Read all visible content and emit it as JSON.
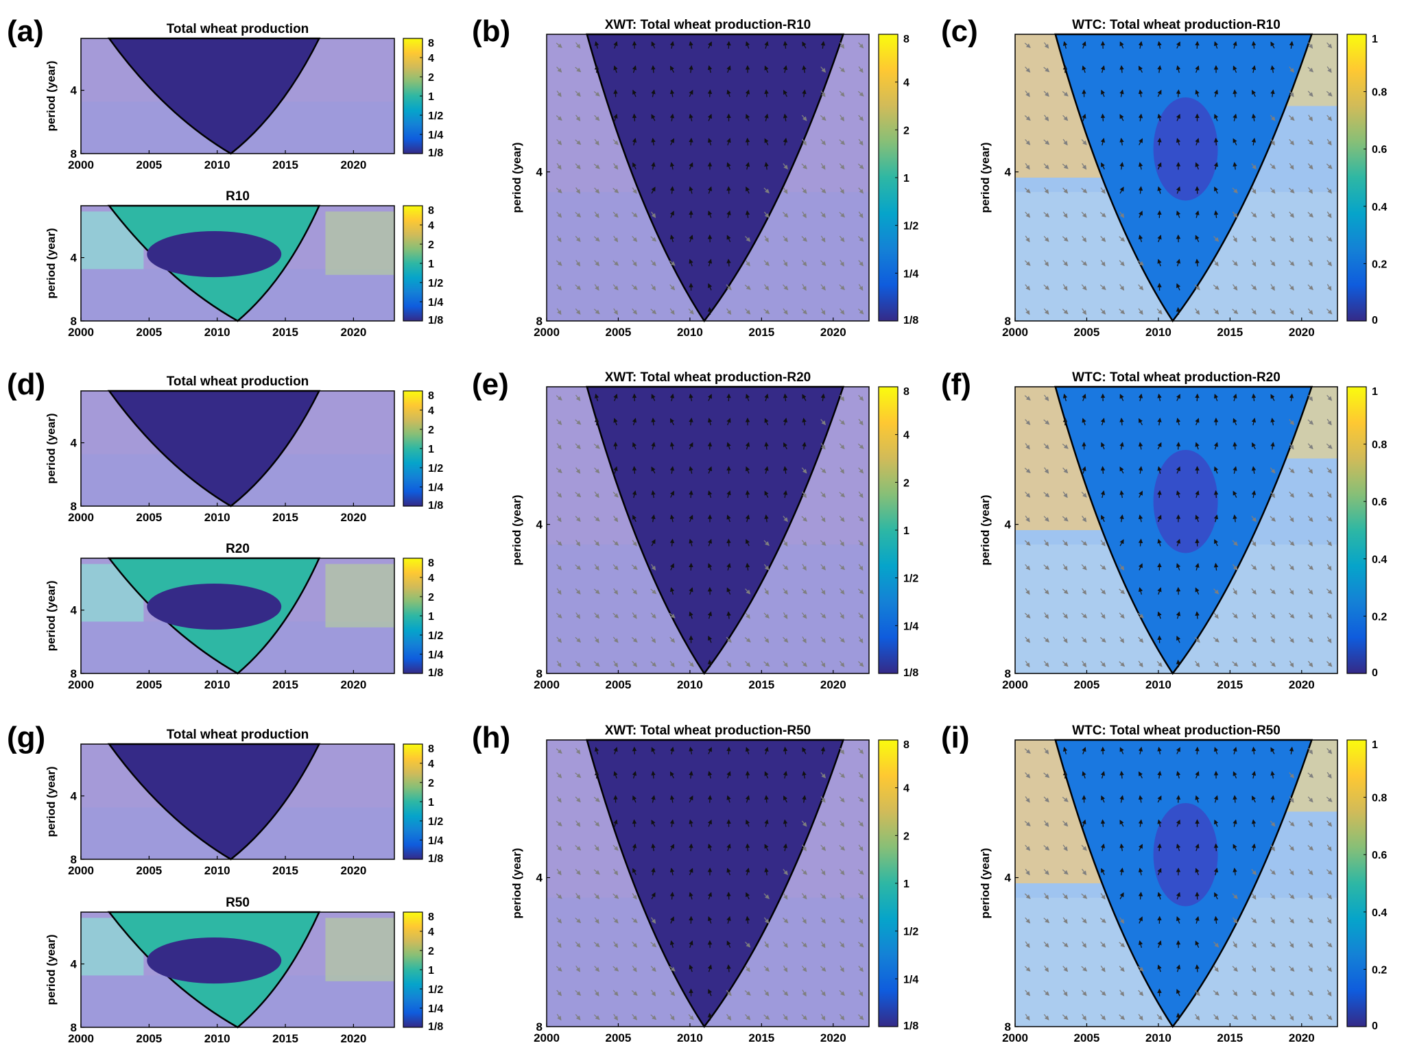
{
  "figure": {
    "colors": {
      "parula": [
        "#352a87",
        "#0f5cdd",
        "#1481d6",
        "#06a4ca",
        "#2eb7a4",
        "#87bf77",
        "#d1bb59",
        "#fec832",
        "#f9fb0e"
      ],
      "masked": "#a59ad8",
      "masked_light": "#b8c6ef",
      "arrow_dark": "#111111",
      "arrow_light": "#7f7f7f",
      "cone": "#000000"
    },
    "panels": [
      {
        "letter": "(a)",
        "kind": "cwt_pair"
      },
      {
        "letter": "(b)",
        "kind": "xwt"
      },
      {
        "letter": "(c)",
        "kind": "wtc"
      },
      {
        "letter": "(d)",
        "kind": "cwt_pair"
      },
      {
        "letter": "(e)",
        "kind": "xwt"
      },
      {
        "letter": "(f)",
        "kind": "wtc"
      },
      {
        "letter": "(g)",
        "kind": "cwt_pair"
      },
      {
        "letter": "(h)",
        "kind": "xwt"
      },
      {
        "letter": "(i)",
        "kind": "wtc"
      }
    ]
  },
  "chart_data": [
    {
      "panel": "(a)",
      "type": "heatmap",
      "title": "Total wheat production",
      "xlabel": "",
      "ylabel": "period (year)",
      "x_ticks": [
        "2000",
        "2005",
        "2010",
        "2015",
        "2020"
      ],
      "y_ticks": [
        "4",
        "8"
      ],
      "xlim": [
        2000,
        2023
      ],
      "colorbar_ticks": [
        "8",
        "4",
        "2",
        "1",
        "1/2",
        "1/4",
        "1/8"
      ],
      "coi_vertex": [
        2011,
        8
      ]
    },
    {
      "panel": "(a)",
      "type": "heatmap",
      "title": "R10",
      "xlabel": "",
      "ylabel": "period (year)",
      "x_ticks": [
        "2000",
        "2005",
        "2010",
        "2015",
        "2020"
      ],
      "y_ticks": [
        "4",
        "8"
      ],
      "xlim": [
        2000,
        2023
      ],
      "colorbar_ticks": [
        "8",
        "4",
        "2",
        "1",
        "1/2",
        "1/4",
        "1/8"
      ],
      "coi_vertex": [
        2011.5,
        8
      ]
    },
    {
      "panel": "(b)",
      "type": "heatmap",
      "title": "XWT: Total wheat production-R10",
      "xlabel": "",
      "ylabel": "period (year)",
      "x_ticks": [
        "2000",
        "2005",
        "2010",
        "2015",
        "2020"
      ],
      "y_ticks": [
        "4",
        "8"
      ],
      "xlim": [
        2000,
        2022.5
      ],
      "colorbar_ticks": [
        "8",
        "4",
        "2",
        "1",
        "1/2",
        "1/4",
        "1/8"
      ],
      "coi_vertex": [
        2011,
        8
      ]
    },
    {
      "panel": "(c)",
      "type": "heatmap",
      "title": "WTC: Total wheat production-R10",
      "xlabel": "",
      "ylabel": "period (year)",
      "x_ticks": [
        "2000",
        "2005",
        "2010",
        "2015",
        "2020"
      ],
      "y_ticks": [
        "4",
        "8"
      ],
      "xlim": [
        2000,
        2022.5
      ],
      "colorbar_ticks": [
        "1",
        "0.8",
        "0.6",
        "0.4",
        "0.2",
        "0"
      ],
      "coi_vertex": [
        2011,
        8
      ]
    },
    {
      "panel": "(d)",
      "type": "heatmap",
      "title": "Total wheat production",
      "xlabel": "",
      "ylabel": "period (year)",
      "x_ticks": [
        "2000",
        "2005",
        "2010",
        "2015",
        "2020"
      ],
      "y_ticks": [
        "4",
        "8"
      ],
      "xlim": [
        2000,
        2023
      ],
      "colorbar_ticks": [
        "8",
        "4",
        "2",
        "1",
        "1/2",
        "1/4",
        "1/8"
      ],
      "coi_vertex": [
        2011,
        8
      ]
    },
    {
      "panel": "(d)",
      "type": "heatmap",
      "title": "R20",
      "xlabel": "",
      "ylabel": "period (year)",
      "x_ticks": [
        "2000",
        "2005",
        "2010",
        "2015",
        "2020"
      ],
      "y_ticks": [
        "4",
        "8"
      ],
      "xlim": [
        2000,
        2023
      ],
      "colorbar_ticks": [
        "8",
        "4",
        "2",
        "1",
        "1/2",
        "1/4",
        "1/8"
      ],
      "coi_vertex": [
        2011.5,
        8
      ]
    },
    {
      "panel": "(e)",
      "type": "heatmap",
      "title": "XWT: Total wheat production-R20",
      "xlabel": "",
      "ylabel": "period (year)",
      "x_ticks": [
        "2000",
        "2005",
        "2010",
        "2015",
        "2020"
      ],
      "y_ticks": [
        "4",
        "8"
      ],
      "xlim": [
        2000,
        2022.5
      ],
      "colorbar_ticks": [
        "8",
        "4",
        "2",
        "1",
        "1/2",
        "1/4",
        "1/8"
      ],
      "coi_vertex": [
        2011,
        8
      ]
    },
    {
      "panel": "(f)",
      "type": "heatmap",
      "title": "WTC: Total wheat production-R20",
      "xlabel": "",
      "ylabel": "period (year)",
      "x_ticks": [
        "2000",
        "2005",
        "2010",
        "2015",
        "2020"
      ],
      "y_ticks": [
        "4",
        "8"
      ],
      "xlim": [
        2000,
        2022.5
      ],
      "colorbar_ticks": [
        "1",
        "0.8",
        "0.6",
        "0.4",
        "0.2",
        "0"
      ],
      "coi_vertex": [
        2011,
        8
      ]
    },
    {
      "panel": "(g)",
      "type": "heatmap",
      "title": "Total wheat production",
      "xlabel": "",
      "ylabel": "period (year)",
      "x_ticks": [
        "2000",
        "2005",
        "2010",
        "2015",
        "2020"
      ],
      "y_ticks": [
        "4",
        "8"
      ],
      "xlim": [
        2000,
        2023
      ],
      "colorbar_ticks": [
        "8",
        "4",
        "2",
        "1",
        "1/2",
        "1/4",
        "1/8"
      ],
      "coi_vertex": [
        2011,
        8
      ]
    },
    {
      "panel": "(g)",
      "type": "heatmap",
      "title": "R50",
      "xlabel": "",
      "ylabel": "period (year)",
      "x_ticks": [
        "2000",
        "2005",
        "2010",
        "2015",
        "2020"
      ],
      "y_ticks": [
        "4",
        "8"
      ],
      "xlim": [
        2000,
        2023
      ],
      "colorbar_ticks": [
        "8",
        "4",
        "2",
        "1",
        "1/2",
        "1/4",
        "1/8"
      ],
      "coi_vertex": [
        2011.5,
        8
      ]
    },
    {
      "panel": "(h)",
      "type": "heatmap",
      "title": "XWT: Total wheat production-R50",
      "xlabel": "",
      "ylabel": "period (year)",
      "x_ticks": [
        "2000",
        "2005",
        "2010",
        "2015",
        "2020"
      ],
      "y_ticks": [
        "4",
        "8"
      ],
      "xlim": [
        2000,
        2022.5
      ],
      "colorbar_ticks": [
        "8",
        "4",
        "2",
        "1",
        "1/2",
        "1/4",
        "1/8"
      ],
      "coi_vertex": [
        2011,
        8
      ]
    },
    {
      "panel": "(i)",
      "type": "heatmap",
      "title": "WTC: Total wheat production-R50",
      "xlabel": "",
      "ylabel": "period (year)",
      "x_ticks": [
        "2000",
        "2005",
        "2010",
        "2015",
        "2020"
      ],
      "y_ticks": [
        "4",
        "8"
      ],
      "xlim": [
        2000,
        2022.5
      ],
      "colorbar_ticks": [
        "1",
        "0.8",
        "0.6",
        "0.4",
        "0.2",
        "0"
      ],
      "coi_vertex": [
        2011,
        8
      ]
    }
  ]
}
